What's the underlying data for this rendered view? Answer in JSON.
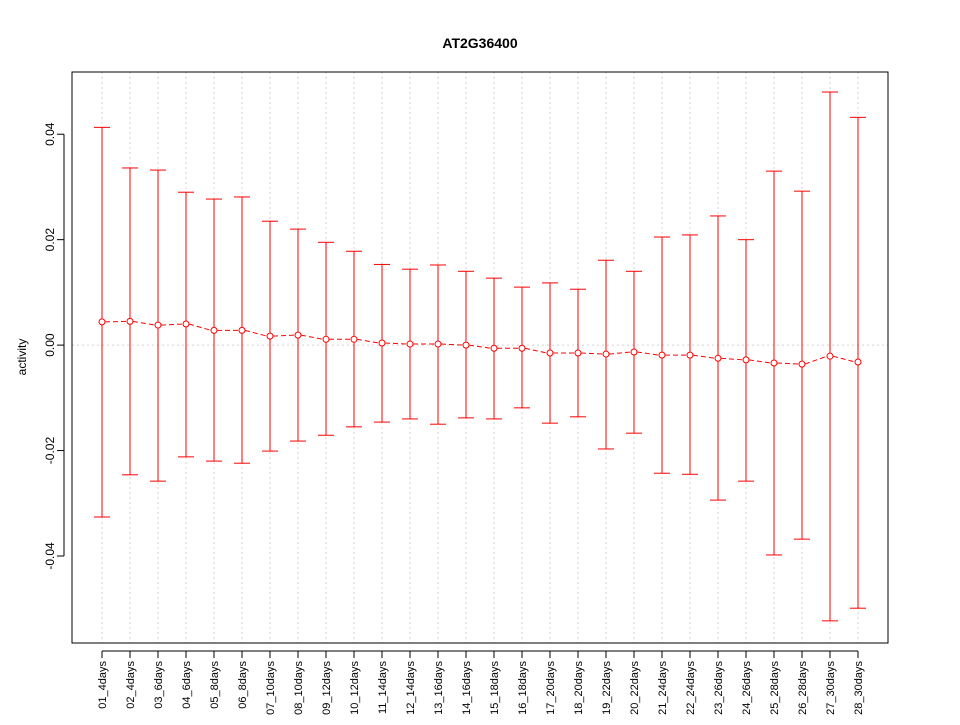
{
  "chart_data": {
    "type": "line",
    "title": "AT2G36400",
    "xlabel": "",
    "ylabel": "activity",
    "ylim": [
      -0.0565,
      0.0518
    ],
    "yticks": [
      -0.04,
      -0.02,
      0.0,
      0.02,
      0.04
    ],
    "ytick_labels": [
      "-0.04",
      "-0.02",
      "0.00",
      "0.02",
      "0.04"
    ],
    "grid": true,
    "color": "#ff0000",
    "categories": [
      "01_4days",
      "02_4days",
      "03_6days",
      "04_6days",
      "05_8days",
      "06_8days",
      "07_10days",
      "08_10days",
      "09_12days",
      "10_12days",
      "11_14days",
      "12_14days",
      "13_16days",
      "14_16days",
      "15_18days",
      "16_18days",
      "17_20days",
      "18_20days",
      "19_22days",
      "20_22days",
      "21_24days",
      "22_24days",
      "23_26days",
      "24_26days",
      "25_28days",
      "26_28days",
      "27_30days",
      "28_30days"
    ],
    "values": [
      0.0044,
      0.0045,
      0.0038,
      0.004,
      0.0028,
      0.0028,
      0.0017,
      0.0019,
      0.0011,
      0.0011,
      0.0004,
      0.0002,
      0.0002,
      0.0,
      -0.0006,
      -0.0006,
      -0.0015,
      -0.0015,
      -0.0017,
      -0.0013,
      -0.0019,
      -0.0019,
      -0.0025,
      -0.0028,
      -0.0034,
      -0.0036,
      -0.0021,
      -0.0032
    ],
    "upper": [
      0.0413,
      0.0336,
      0.0332,
      0.029,
      0.0277,
      0.0281,
      0.0235,
      0.022,
      0.0195,
      0.0178,
      0.0153,
      0.0144,
      0.0152,
      0.014,
      0.0127,
      0.011,
      0.0118,
      0.0106,
      0.0161,
      0.014,
      0.0205,
      0.0209,
      0.0245,
      0.02,
      0.033,
      0.0292,
      0.048,
      0.0432
    ],
    "lower": [
      -0.0326,
      -0.0246,
      -0.0258,
      -0.0212,
      -0.022,
      -0.0224,
      -0.0201,
      -0.0182,
      -0.0171,
      -0.0155,
      -0.0146,
      -0.014,
      -0.015,
      -0.0138,
      -0.014,
      -0.0119,
      -0.0148,
      -0.0136,
      -0.0197,
      -0.0167,
      -0.0243,
      -0.0245,
      -0.0294,
      -0.0258,
      -0.0398,
      -0.0368,
      -0.0523,
      -0.0499
    ]
  }
}
